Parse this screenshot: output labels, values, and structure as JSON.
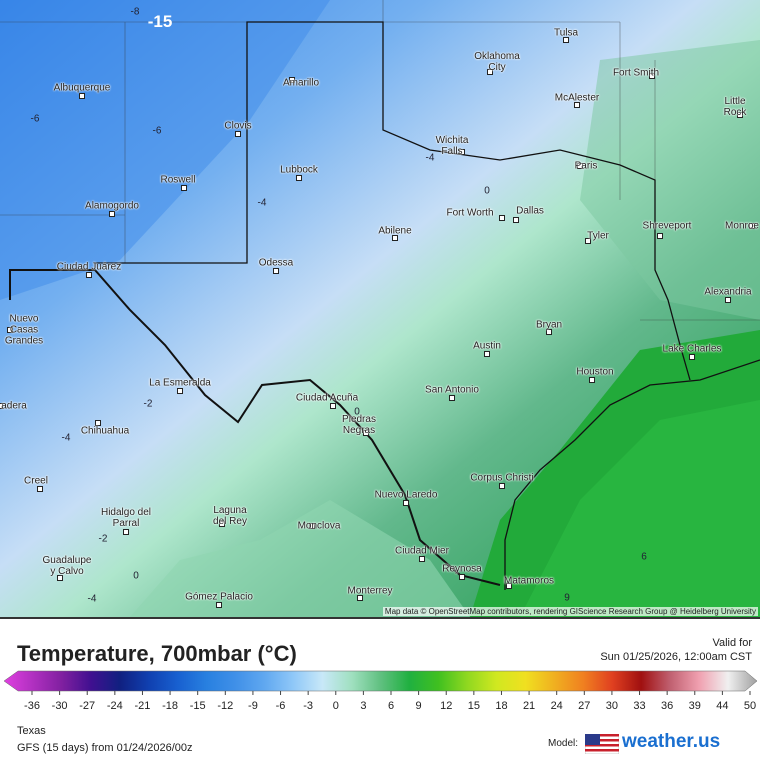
{
  "header": {
    "title": "Temperature, 700mbar (°C)",
    "valid_label": "Valid for",
    "valid_time": "Sun 01/25/2026, 12:00am CST"
  },
  "colorbar": {
    "ticks": [
      -36,
      -30,
      -27,
      -24,
      -21,
      -18,
      -15,
      -12,
      -9,
      -6,
      -3,
      0,
      3,
      6,
      9,
      12,
      15,
      18,
      21,
      24,
      27,
      30,
      33,
      36,
      39,
      44,
      50
    ]
  },
  "footer": {
    "region": "Texas",
    "run": "GFS (15 days) from 01/24/2026/00z",
    "model_label": "Model:",
    "brand": "weather.us"
  },
  "map": {
    "attribution": "Map data © OpenStreetMap contributors, rendering GIScience Research Group @ Heidelberg University",
    "cities": [
      "Tulsa",
      "Oklahoma\nCity",
      "Albuquerque",
      "Amarillo",
      "Fort Smith",
      "McAlester",
      "Little Rock",
      "Clovis",
      "Wichita\nFalls",
      "Paris",
      "Lubbock",
      "Roswell",
      "Alamogordo",
      "Fort Worth",
      "Dallas",
      "Abilene",
      "Tyler",
      "Shreveport",
      "Monroe",
      "Ciudad Juárez",
      "Odessa",
      "Alexandria",
      "Nuevo\nCasas\nGrandes",
      "Bryan",
      "Austin",
      "Lake Charles",
      "Houston",
      "La Esmeralda",
      "San Antonio",
      "Ciudad Acuña",
      "Piedras\nNegras",
      "Chihuahua",
      "adera",
      "Creel",
      "Corpus Christi",
      "Nuevo Laredo",
      "Hidalgo del\nParral",
      "Laguna\ndel Rey",
      "Monclova",
      "Ciudad Mier",
      "Guadalupe\ny Calvo",
      "Reynosa",
      "Matamoros",
      "Monterrey",
      "Gómez Palacio"
    ],
    "contour_labels": [
      "-15",
      "-8",
      "-6",
      "-6",
      "-4",
      "-4",
      "0",
      "-2",
      "-4",
      "0",
      "-2",
      "0",
      "-4",
      "6",
      "9"
    ]
  }
}
